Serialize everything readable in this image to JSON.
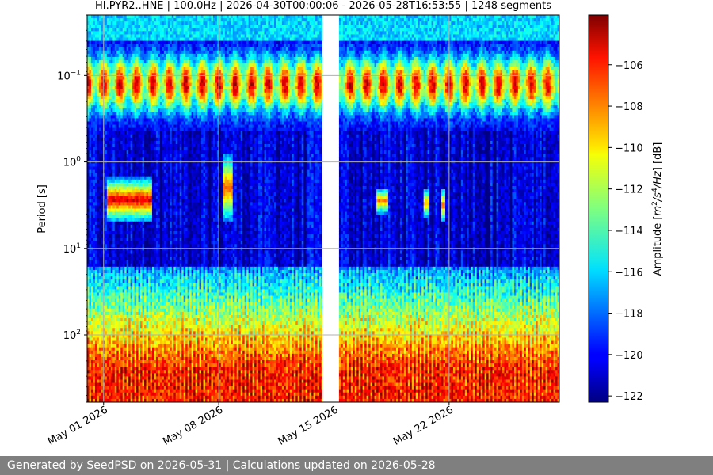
{
  "footer": {
    "text": "Generated by SeedPSD on 2026-05-31 | Calculations updated on 2026-05-28"
  },
  "chart_data": {
    "type": "heatmap",
    "title": "HI.PYR2..HNE | 100.0Hz | 2026-04-30T00:00:06 - 2026-05-28T16:53:55 | 1248 segments",
    "xlabel": "",
    "ylabel": "Period [s]",
    "colorbar_label": "Amplitude [m²/s⁴/Hz] [dB]",
    "colorbar_label_parts": [
      "Amplitude [",
      "m",
      "2",
      "/",
      "s",
      "4",
      "/",
      "Hz",
      "] [dB]"
    ],
    "x_tick_labels": [
      "May 01 2026",
      "May 08 2026",
      "May 15 2026",
      "May 22 2026"
    ],
    "x_tick_days": [
      1,
      8,
      15,
      22
    ],
    "xlim_days": [
      0,
      28.7
    ],
    "y_scale": "log",
    "y_inverted": true,
    "ylim": [
      0.02,
      600
    ],
    "y_ticks": [
      {
        "base": "10",
        "exp": "−1",
        "value": 0.1
      },
      {
        "base": "10",
        "exp": "0",
        "value": 1
      },
      {
        "base": "10",
        "exp": "1",
        "value": 10
      },
      {
        "base": "10",
        "exp": "2",
        "value": 100
      }
    ],
    "colorbar_ticks": [
      "−106",
      "−108",
      "−110",
      "−112",
      "−114",
      "−116",
      "−118",
      "−120",
      "−122"
    ],
    "colorbar_tick_values": [
      -106,
      -108,
      -110,
      -112,
      -114,
      -116,
      -118,
      -120,
      -122
    ],
    "crange": [
      -122.3,
      -103.6
    ],
    "colormap": "jet",
    "grid": true,
    "data_gaps_days": [
      [
        14.3,
        15.3
      ]
    ],
    "features": [
      {
        "name": "microseism-band",
        "days": [
          0,
          28.7
        ],
        "period_range": [
          0.05,
          0.4
        ],
        "level_db": -106
      },
      {
        "name": "long-period-noise",
        "days": [
          0,
          28.7
        ],
        "period_range": [
          60,
          600
        ],
        "level_db": -107
      },
      {
        "name": "event",
        "days": [
          1.2,
          3.9
        ],
        "period_range": [
          1.5,
          5
        ],
        "level_db": -105
      },
      {
        "name": "event",
        "days": [
          8.3,
          8.9
        ],
        "period_range": [
          0.8,
          5
        ],
        "level_db": -107
      },
      {
        "name": "event",
        "days": [
          17.6,
          18.3
        ],
        "period_range": [
          2,
          4
        ],
        "level_db": -108
      },
      {
        "name": "event",
        "days": [
          20.5,
          20.8
        ],
        "period_range": [
          2,
          4.5
        ],
        "level_db": -109
      },
      {
        "name": "event",
        "days": [
          21.5,
          21.8
        ],
        "period_range": [
          2,
          5
        ],
        "level_db": -108
      }
    ]
  },
  "colors": {
    "footer_bg": "#7f7f7f",
    "grid": "#b0b0b0",
    "gap": "#ffffff"
  }
}
